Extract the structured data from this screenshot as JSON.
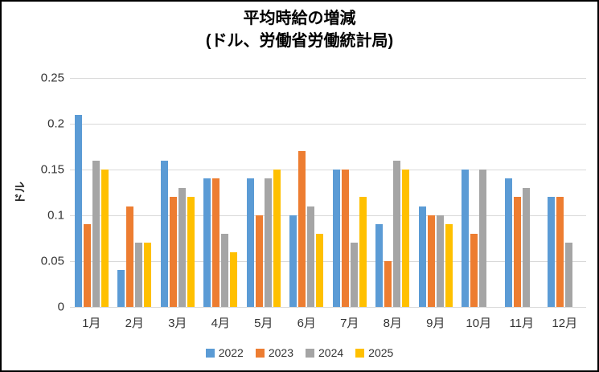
{
  "title": {
    "line1": "平均時給の増減",
    "line2": "(ドル、労働省労働統計局)"
  },
  "chart_data": {
    "type": "bar",
    "title": "平均時給の増減 (ドル、労働省労働統計局)",
    "xlabel": "",
    "ylabel": "ドル",
    "ylim": [
      0,
      0.25
    ],
    "yticks": [
      0,
      0.05,
      0.1,
      0.15,
      0.2,
      0.25
    ],
    "ytick_labels": [
      "0",
      "0.05",
      "0.1",
      "0.15",
      "0.2",
      "0.25"
    ],
    "grid": true,
    "gridline_color": "#D9D9D9",
    "legend_position": "bottom",
    "categories": [
      "1月",
      "2月",
      "3月",
      "4月",
      "5月",
      "6月",
      "7月",
      "8月",
      "9月",
      "10月",
      "11月",
      "12月"
    ],
    "series": [
      {
        "name": "2022",
        "color": "#5B9BD5",
        "values": [
          0.21,
          0.04,
          0.16,
          0.14,
          0.14,
          0.1,
          0.15,
          0.09,
          0.11,
          0.15,
          0.14,
          0.12
        ]
      },
      {
        "name": "2023",
        "color": "#ED7D31",
        "values": [
          0.09,
          0.11,
          0.12,
          0.14,
          0.1,
          0.17,
          0.15,
          0.05,
          0.1,
          0.08,
          0.12,
          0.12
        ]
      },
      {
        "name": "2024",
        "color": "#A5A5A5",
        "values": [
          0.16,
          0.07,
          0.13,
          0.08,
          0.14,
          0.11,
          0.07,
          0.16,
          0.1,
          0.15,
          0.13,
          0.07
        ]
      },
      {
        "name": "2025",
        "color": "#FFC000",
        "values": [
          0.15,
          0.07,
          0.12,
          0.06,
          0.15,
          0.08,
          0.12,
          0.15,
          0.09,
          null,
          null,
          null
        ]
      }
    ]
  }
}
